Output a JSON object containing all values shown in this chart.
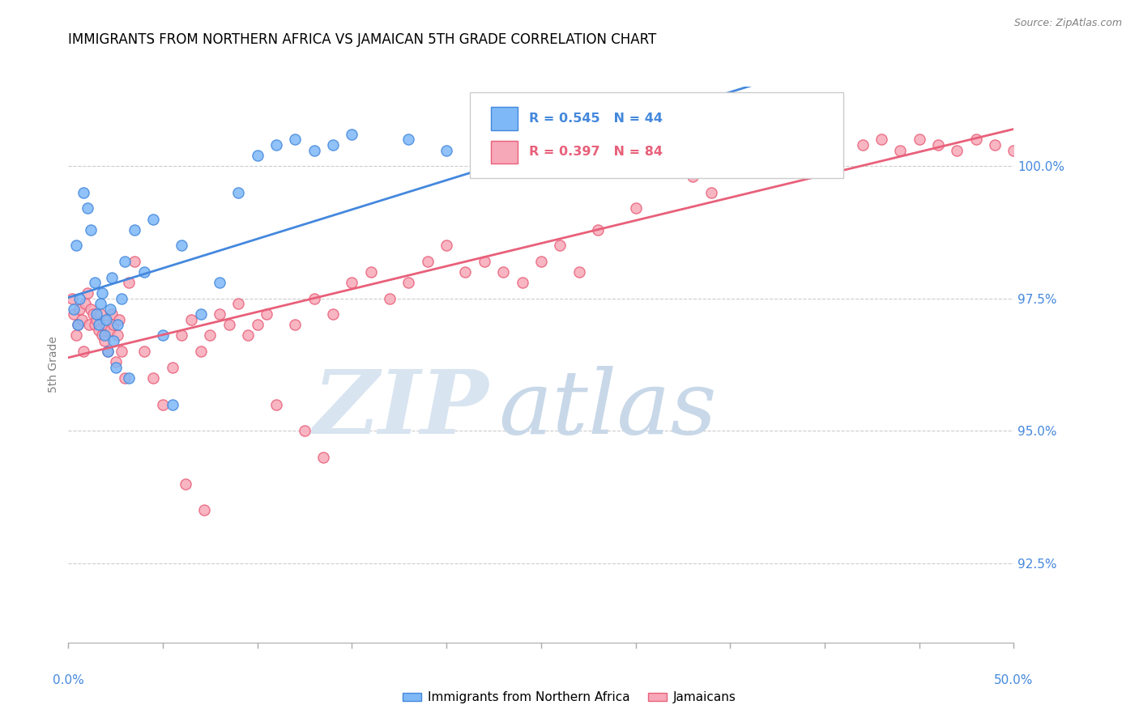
{
  "title": "IMMIGRANTS FROM NORTHERN AFRICA VS JAMAICAN 5TH GRADE CORRELATION CHART",
  "source": "Source: ZipAtlas.com",
  "ylabel": "5th Grade",
  "yticks": [
    92.5,
    95.0,
    97.5,
    100.0
  ],
  "ytick_labels": [
    "92.5%",
    "95.0%",
    "97.5%",
    "100.0%"
  ],
  "xmin": 0.0,
  "xmax": 50.0,
  "ymin": 91.0,
  "ymax": 101.5,
  "blue_R": 0.545,
  "blue_N": 44,
  "pink_R": 0.397,
  "pink_N": 84,
  "blue_color": "#7EB8F7",
  "pink_color": "#F7A8B8",
  "blue_line_color": "#4488DD",
  "pink_line_color": "#E8607A",
  "legend_blue_label": "Immigrants from Northern Africa",
  "legend_pink_label": "Jamaicans",
  "blue_scatter_x": [
    0.3,
    0.4,
    0.5,
    0.6,
    0.8,
    1.0,
    1.2,
    1.4,
    1.5,
    1.6,
    1.7,
    1.8,
    1.9,
    2.0,
    2.1,
    2.2,
    2.3,
    2.4,
    2.5,
    2.6,
    2.8,
    3.0,
    3.2,
    3.5,
    4.0,
    4.5,
    5.0,
    5.5,
    6.0,
    7.0,
    8.0,
    9.0,
    10.0,
    11.0,
    12.0,
    13.0,
    14.0,
    15.0,
    18.0,
    20.0,
    25.0,
    30.0,
    35.0,
    40.0
  ],
  "blue_scatter_y": [
    97.3,
    98.5,
    97.0,
    97.5,
    99.5,
    99.2,
    98.8,
    97.8,
    97.2,
    97.0,
    97.4,
    97.6,
    96.8,
    97.1,
    96.5,
    97.3,
    97.9,
    96.7,
    96.2,
    97.0,
    97.5,
    98.2,
    96.0,
    98.8,
    98.0,
    99.0,
    96.8,
    95.5,
    98.5,
    97.2,
    97.8,
    99.5,
    100.2,
    100.4,
    100.5,
    100.3,
    100.4,
    100.6,
    100.5,
    100.3,
    100.4,
    100.3,
    100.5,
    100.4
  ],
  "pink_scatter_x": [
    0.2,
    0.3,
    0.4,
    0.5,
    0.6,
    0.7,
    0.8,
    0.9,
    1.0,
    1.1,
    1.2,
    1.3,
    1.4,
    1.5,
    1.6,
    1.7,
    1.8,
    1.9,
    2.0,
    2.1,
    2.2,
    2.3,
    2.4,
    2.5,
    2.6,
    2.7,
    2.8,
    3.0,
    3.2,
    3.5,
    4.0,
    4.5,
    5.0,
    5.5,
    6.0,
    6.5,
    7.0,
    7.5,
    8.0,
    8.5,
    9.0,
    9.5,
    10.0,
    10.5,
    11.0,
    12.0,
    13.0,
    14.0,
    15.0,
    16.0,
    17.0,
    18.0,
    19.0,
    20.0,
    21.0,
    22.0,
    23.0,
    24.0,
    25.0,
    26.0,
    27.0,
    28.0,
    30.0,
    32.0,
    33.0,
    34.0,
    36.0,
    37.0,
    38.0,
    39.0,
    40.0,
    42.0,
    43.0,
    44.0,
    45.0,
    46.0,
    47.0,
    48.0,
    49.0,
    50.0,
    12.5,
    13.5,
    6.2,
    7.2
  ],
  "pink_scatter_y": [
    97.5,
    97.2,
    96.8,
    97.0,
    97.3,
    97.1,
    96.5,
    97.4,
    97.6,
    97.0,
    97.3,
    97.2,
    97.0,
    97.1,
    96.9,
    97.2,
    96.8,
    96.7,
    97.0,
    96.5,
    96.9,
    97.2,
    97.0,
    96.3,
    96.8,
    97.1,
    96.5,
    96.0,
    97.8,
    98.2,
    96.5,
    96.0,
    95.5,
    96.2,
    96.8,
    97.1,
    96.5,
    96.8,
    97.2,
    97.0,
    97.4,
    96.8,
    97.0,
    97.2,
    95.5,
    97.0,
    97.5,
    97.2,
    97.8,
    98.0,
    97.5,
    97.8,
    98.2,
    98.5,
    98.0,
    98.2,
    98.0,
    97.8,
    98.2,
    98.5,
    98.0,
    98.8,
    99.2,
    100.0,
    99.8,
    99.5,
    100.2,
    100.3,
    100.4,
    100.5,
    100.3,
    100.4,
    100.5,
    100.3,
    100.5,
    100.4,
    100.3,
    100.5,
    100.4,
    100.3,
    95.0,
    94.5,
    94.0,
    93.5
  ],
  "watermark_zip": "ZIP",
  "watermark_atlas": "atlas",
  "watermark_color_zip": "#D8E4F0",
  "watermark_color_atlas": "#C8D8E8"
}
